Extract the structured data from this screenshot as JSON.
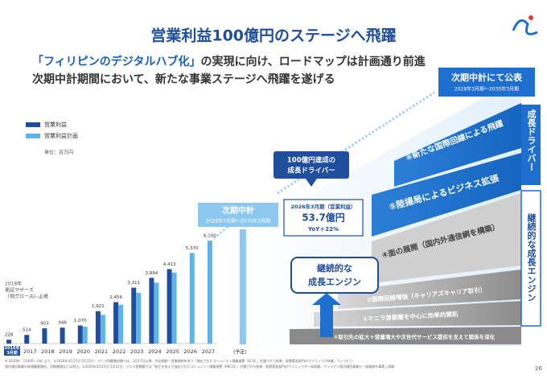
{
  "header": {
    "title": "営業利益100億円のステージへ飛躍",
    "subtitle_highlight": "「フィリピンのデジタルハブ化」",
    "subtitle_rest": "の実現に向け、ロードマップは計画通り前進",
    "subtitle_2": "次期中計期間において、新たな事業ステージへ飛躍を遂げる"
  },
  "chart_data": {
    "type": "bar",
    "categories": [
      "2016年3月期",
      "2017",
      "2018",
      "2019",
      "2020",
      "2021",
      "2022",
      "2023",
      "2024",
      "2025",
      "2026",
      "2027"
    ],
    "series": [
      {
        "name": "営業利益",
        "color": "#1f4e9c",
        "values": [
          228,
          514,
          903,
          946,
          1070,
          1921,
          2456,
          3311,
          3894,
          4413,
          null,
          null
        ],
        "value_labels": [
          "228",
          "514",
          "903",
          "946",
          "1,070",
          "1,921",
          "2,456",
          "3,311",
          "3,894",
          "4,413",
          null,
          null
        ]
      },
      {
        "name": "営業利益計画",
        "color": "#5fb4e6",
        "values": [
          null,
          null,
          null,
          null,
          1000,
          1700,
          2300,
          3000,
          3600,
          4200,
          5370,
          6100
        ],
        "value_labels": [
          null,
          null,
          null,
          null,
          null,
          null,
          null,
          null,
          null,
          null,
          "5,370",
          "6,100"
        ]
      }
    ],
    "x_note": "(予定)",
    "unit_label": "単位：百万円",
    "listing_note": [
      "2018年",
      "東証マザーズ",
      "（現グロース）上場"
    ]
  },
  "next_plan": {
    "title": "次期中計",
    "period": "2028年3月期〜2030年3月期"
  },
  "driver_box": [
    "100億円達成の",
    "成長ドライバー"
  ],
  "result_box": {
    "label": "2026年3月期（営業利益）",
    "value": "53.7億円",
    "yoy": "YoY＋22%"
  },
  "engine_box": [
    "継続的な",
    "成長エンジン"
  ],
  "announce": {
    "title": "次期中計にて公表",
    "period": "2028年3月期〜2030年3月期"
  },
  "steps": [
    "①取引先の拡大＋容量増大や次世代サービス提供を支えて関係を深化",
    "②マニラ首都圏を中心に効率的開拓",
    "③国際回線増強（キャリアズキャリア取引）",
    "④面の展開（国内外通信網を構築）",
    "⑤陸揚局によるビジネス拡張",
    "⑥新たな国際回線による飛躍"
  ],
  "side_labels": [
    "成長ドライバー",
    "継続的な成長エンジン"
  ],
  "footnote": [
    "※ 2020年：COVID－19により、①2020年3月17日-5月15日：マニラ首都圏封鎖では、3月17日以降、外出規制・営業規制を伴う「強化されたコミュニティ隔離措置（ECQ）」を課された結果、医療実習部門のクリニックが休業。フィリピン",
    "国内通信事業の新規顧客開拓、回線開通などは停止。②2020年5月16日-5月31日：マニラ首都圏では「修正を加えた強化されたコミュニティ隔離措置（MECQ）」が課された結果、医療実習部門のクリニックが一部再開。フィリピン国内通信事業も一部業務を事実上再開"
  ],
  "page_number": "26"
}
